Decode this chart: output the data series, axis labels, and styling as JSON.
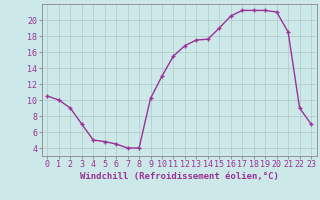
{
  "x": [
    0,
    1,
    2,
    3,
    4,
    5,
    6,
    7,
    8,
    9,
    10,
    11,
    12,
    13,
    14,
    15,
    16,
    17,
    18,
    19,
    20,
    21,
    22,
    23
  ],
  "y": [
    10.5,
    10.0,
    9.0,
    7.0,
    5.0,
    4.8,
    4.5,
    4.0,
    4.0,
    10.2,
    13.0,
    15.5,
    16.8,
    17.5,
    17.6,
    19.0,
    20.5,
    21.2,
    21.2,
    21.2,
    21.0,
    18.5,
    9.0,
    7.0
  ],
  "line_color": "#993399",
  "marker_color": "#993399",
  "bg_color": "#cce8e8",
  "grid_color": "#b0c8c8",
  "xlabel": "Windchill (Refroidissement éolien,°C)",
  "ylim": [
    3,
    22
  ],
  "yticks": [
    4,
    6,
    8,
    10,
    12,
    14,
    16,
    18,
    20
  ],
  "xlim": [
    -0.5,
    23.5
  ],
  "xticks": [
    0,
    1,
    2,
    3,
    4,
    5,
    6,
    7,
    8,
    9,
    10,
    11,
    12,
    13,
    14,
    15,
    16,
    17,
    18,
    19,
    20,
    21,
    22,
    23
  ],
  "tick_color": "#993399",
  "label_color": "#993399",
  "label_fontsize": 6.5,
  "tick_fontsize": 6.0,
  "spine_color": "#888888"
}
